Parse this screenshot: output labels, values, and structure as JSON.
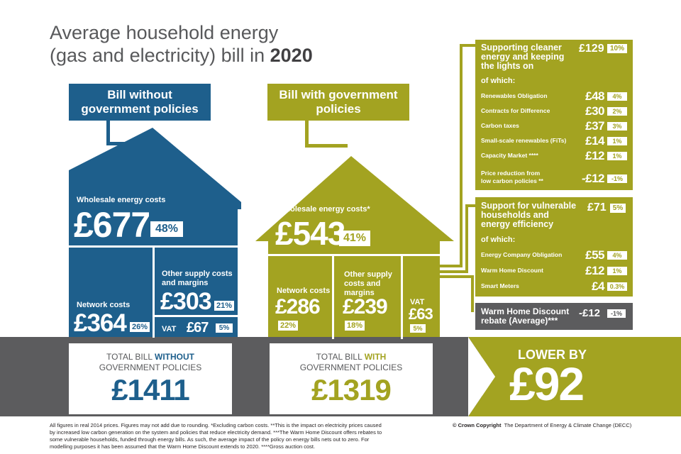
{
  "title": {
    "line1": "Average household energy",
    "line2_pre": "(gas and electricity) bill in",
    "year": "2020"
  },
  "house_without": {
    "header": "Bill without government policies",
    "wholesale": {
      "label": "Wholesale energy costs",
      "value": "£677",
      "pct": "48%"
    },
    "network": {
      "label": "Network costs",
      "value": "£364",
      "pct": "26%"
    },
    "other": {
      "label": "Other supply costs and margins",
      "value": "£303",
      "pct": "21%"
    },
    "vat": {
      "label": "VAT",
      "value": "£67",
      "pct": "5%"
    }
  },
  "house_with": {
    "header": "Bill with government policies",
    "wholesale": {
      "label": "Wholesale energy costs*",
      "value": "£543",
      "pct": "41%"
    },
    "network": {
      "label": "Network costs",
      "value": "£286",
      "pct": "22%"
    },
    "other": {
      "label": "Other supply costs and margins",
      "value": "£239",
      "pct": "18%"
    },
    "vat": {
      "label": "VAT",
      "value": "£63",
      "pct": "5%"
    }
  },
  "totals": {
    "without": {
      "line1_pre": "TOTAL BILL",
      "line1_em": "WITHOUT",
      "line2": "GOVERNMENT POLICIES",
      "value": "£1411"
    },
    "with": {
      "line1_pre": "TOTAL BILL",
      "line1_em": "WITH",
      "line2": "GOVERNMENT POLICIES",
      "value": "£1319"
    },
    "lower": {
      "label": "LOWER BY",
      "value": "£92"
    }
  },
  "panel_cleaner": {
    "title": "Supporting cleaner energy and keeping the lights on",
    "value": "£129",
    "pct": "10%",
    "of_which": "of which:",
    "rows": [
      {
        "label": "Renewables Obligation",
        "value": "£48",
        "pct": "4%"
      },
      {
        "label": "Contracts for Difference",
        "value": "£30",
        "pct": "2%"
      },
      {
        "label": "Carbon taxes",
        "value": "£37",
        "pct": "3%"
      },
      {
        "label": "Small-scale renewables (FiTs)",
        "value": "£14",
        "pct": "1%"
      },
      {
        "label": "Capacity Market ****",
        "value": "£12",
        "pct": "1%"
      }
    ],
    "reduction_line1": "Price reduction from",
    "reduction_line2": "low carbon policies **",
    "reduction_value": "-£12",
    "reduction_pct": "-1%"
  },
  "panel_vulnerable": {
    "title": "Support for vulnerable households and energy efficiency",
    "value": "£71",
    "pct": "5%",
    "of_which": "of which:",
    "rows": [
      {
        "label": "Energy Company Obligation",
        "value": "£55",
        "pct": "4%"
      },
      {
        "label": "Warm Home Discount",
        "value": "£12",
        "pct": "1%"
      },
      {
        "label": "Smart Meters",
        "value": "£4",
        "pct": "0.3%"
      }
    ]
  },
  "panel_rebate": {
    "title": "Warm Home Discount rebate (Average)***",
    "value": "-£12",
    "pct": "-1%"
  },
  "footer": {
    "note": "All figures in real 2014 prices. Figures may not add due to rounding. *Excluding carbon costs. **This is the impact on electricity prices caused by increased low carbon generation on the system and policies that reduce electricity demand.    ***The Warm Home Discount offers rebates to some vulnerable households, funded through energy bills.  As such, the average impact of the policy on energy bills nets out to zero. For modelling purposes it has been assumed that the Warm Home Discount extends to 2020.  ****Gross auction cost.",
    "copyright": "© Crown Copyright",
    "dept": "The Department of Energy & Climate Change (DECC)"
  },
  "colors": {
    "blue": "#1e5f8c",
    "olive": "#a3a321",
    "grey": "#58595b"
  }
}
